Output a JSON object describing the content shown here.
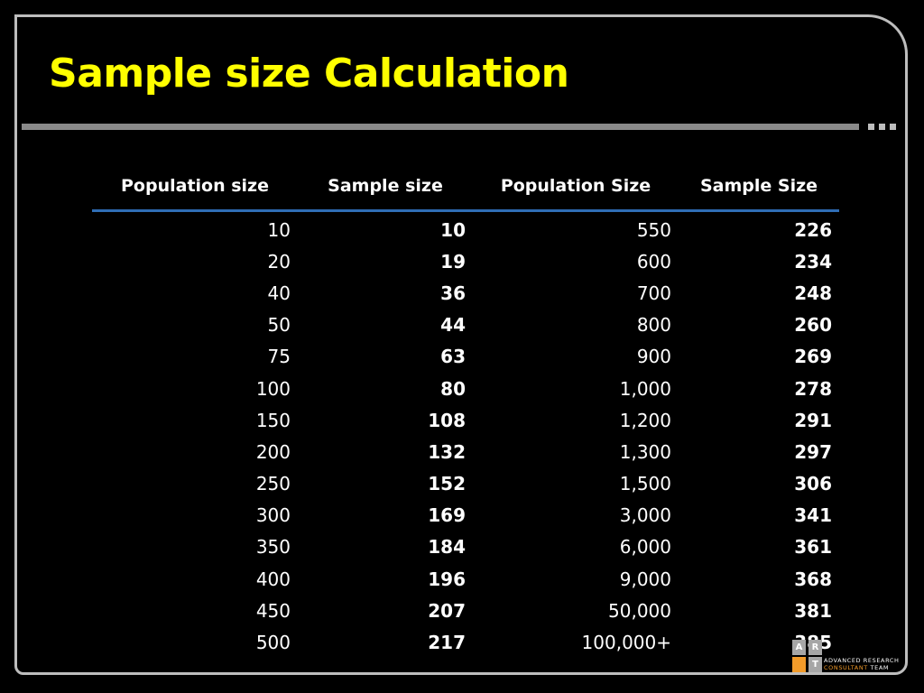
{
  "slide": {
    "title": "Sample size Calculation"
  },
  "table": {
    "headers": [
      "Population size",
      "Sample size",
      "Population Size",
      "Sample Size"
    ],
    "rows": [
      [
        "10",
        "10",
        "550",
        "226"
      ],
      [
        "20",
        "19",
        "600",
        "234"
      ],
      [
        "40",
        "36",
        "700",
        "248"
      ],
      [
        "50",
        "44",
        "800",
        "260"
      ],
      [
        "75",
        "63",
        "900",
        "269"
      ],
      [
        "100",
        "80",
        "1,000",
        "278"
      ],
      [
        "150",
        "108",
        "1,200",
        "291"
      ],
      [
        "200",
        "132",
        "1,300",
        "297"
      ],
      [
        "250",
        "152",
        "1,500",
        "306"
      ],
      [
        "300",
        "169",
        "3,000",
        "341"
      ],
      [
        "350",
        "184",
        "6,000",
        "361"
      ],
      [
        "400",
        "196",
        "9,000",
        "368"
      ],
      [
        "450",
        "207",
        "50,000",
        "381"
      ],
      [
        "500",
        "217",
        "100,000+",
        "385"
      ]
    ]
  },
  "logo": {
    "line1": "ADVANCED RESEARCH",
    "line2_accent": "CONSULTANT",
    "line2_rest": " TEAM",
    "mark_letters": [
      "A",
      "R",
      "T"
    ],
    "colors": {
      "gray": "#a6a6a6",
      "orange": "#f29b2a"
    }
  },
  "colors": {
    "background": "#000000",
    "title": "#ffff00",
    "frame": "#bdbdbd",
    "header_rule": "#2f6db5",
    "text": "#ffffff"
  }
}
